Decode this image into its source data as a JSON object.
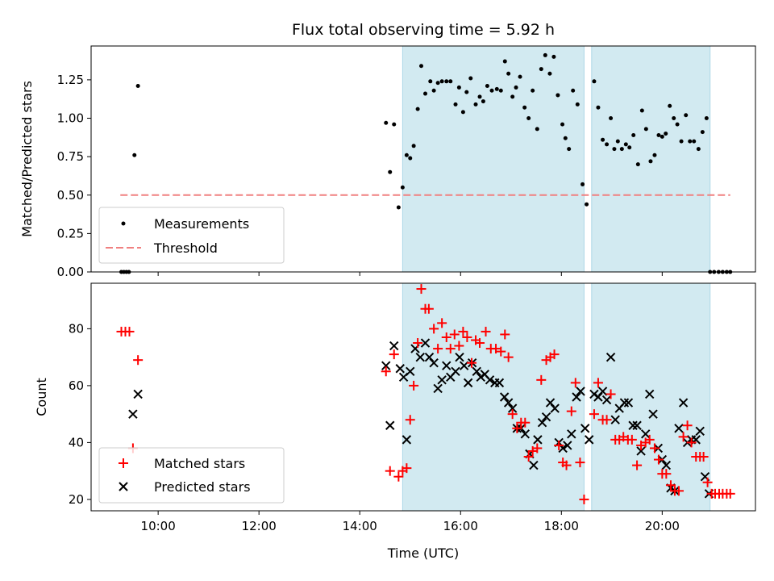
{
  "chart_data": [
    {
      "type": "scatter",
      "title": "Flux total observing time = 5.92 h",
      "xlabel": "",
      "ylabel": "Matched/Predicted stars",
      "xlim": [
        8.67,
        21.85
      ],
      "ylim": [
        0,
        1.47
      ],
      "xticks": [
        10,
        12,
        14,
        16,
        18,
        20
      ],
      "xtick_labels_shown": false,
      "yticks": [
        0,
        0.25,
        0.5,
        0.75,
        1.0,
        1.25
      ],
      "ytick_labels": [
        "0.00",
        "0.25",
        "0.50",
        "0.75",
        "1.00",
        "1.25"
      ],
      "shaded_intervals": [
        [
          14.85,
          18.45
        ],
        [
          18.6,
          20.95
        ]
      ],
      "shade_color": "#add8e6",
      "threshold": {
        "name": "Threshold",
        "value": 0.5,
        "x_range": [
          9.25,
          21.35
        ],
        "color": "#f08080"
      },
      "legend": [
        "Measurements",
        "Threshold"
      ],
      "legend_position": "lower-left",
      "series": [
        {
          "name": "Measurements",
          "marker": "dot",
          "color": "#000000",
          "points": [
            [
              9.27,
              0
            ],
            [
              9.32,
              0
            ],
            [
              9.37,
              0
            ],
            [
              9.42,
              0
            ],
            [
              9.53,
              0.76
            ],
            [
              9.6,
              1.21
            ],
            [
              14.52,
              0.97
            ],
            [
              14.6,
              0.65
            ],
            [
              14.68,
              0.96
            ],
            [
              14.77,
              0.42
            ],
            [
              14.85,
              0.55
            ],
            [
              14.93,
              0.76
            ],
            [
              15.0,
              0.74
            ],
            [
              15.07,
              0.82
            ],
            [
              15.15,
              1.06
            ],
            [
              15.22,
              1.34
            ],
            [
              15.3,
              1.16
            ],
            [
              15.4,
              1.24
            ],
            [
              15.47,
              1.18
            ],
            [
              15.55,
              1.23
            ],
            [
              15.63,
              1.24
            ],
            [
              15.72,
              1.24
            ],
            [
              15.8,
              1.24
            ],
            [
              15.9,
              1.09
            ],
            [
              15.97,
              1.2
            ],
            [
              16.05,
              1.04
            ],
            [
              16.12,
              1.17
            ],
            [
              16.2,
              1.26
            ],
            [
              16.3,
              1.09
            ],
            [
              16.38,
              1.14
            ],
            [
              16.45,
              1.11
            ],
            [
              16.53,
              1.21
            ],
            [
              16.62,
              1.18
            ],
            [
              16.72,
              1.19
            ],
            [
              16.8,
              1.18
            ],
            [
              16.88,
              1.37
            ],
            [
              16.95,
              1.29
            ],
            [
              17.03,
              1.14
            ],
            [
              17.1,
              1.2
            ],
            [
              17.18,
              1.27
            ],
            [
              17.27,
              1.07
            ],
            [
              17.35,
              1.0
            ],
            [
              17.43,
              1.18
            ],
            [
              17.52,
              0.93
            ],
            [
              17.6,
              1.32
            ],
            [
              17.68,
              1.41
            ],
            [
              17.77,
              1.29
            ],
            [
              17.85,
              1.4
            ],
            [
              17.93,
              1.15
            ],
            [
              18.02,
              0.96
            ],
            [
              18.08,
              0.87
            ],
            [
              18.15,
              0.8
            ],
            [
              18.23,
              1.18
            ],
            [
              18.32,
              1.09
            ],
            [
              18.42,
              0.57
            ],
            [
              18.5,
              0.44
            ],
            [
              18.65,
              1.24
            ],
            [
              18.73,
              1.07
            ],
            [
              18.82,
              0.86
            ],
            [
              18.9,
              0.83
            ],
            [
              18.98,
              1.0
            ],
            [
              19.05,
              0.8
            ],
            [
              19.12,
              0.85
            ],
            [
              19.2,
              0.8
            ],
            [
              19.28,
              0.83
            ],
            [
              19.35,
              0.81
            ],
            [
              19.43,
              0.89
            ],
            [
              19.52,
              0.7
            ],
            [
              19.6,
              1.05
            ],
            [
              19.68,
              0.93
            ],
            [
              19.77,
              0.72
            ],
            [
              19.85,
              0.76
            ],
            [
              19.93,
              0.89
            ],
            [
              20.0,
              0.88
            ],
            [
              20.07,
              0.9
            ],
            [
              20.15,
              1.08
            ],
            [
              20.23,
              1.0
            ],
            [
              20.3,
              0.96
            ],
            [
              20.38,
              0.85
            ],
            [
              20.47,
              1.02
            ],
            [
              20.55,
              0.85
            ],
            [
              20.63,
              0.85
            ],
            [
              20.72,
              0.8
            ],
            [
              20.8,
              0.91
            ],
            [
              20.88,
              1.0
            ],
            [
              20.95,
              0
            ],
            [
              21.03,
              0
            ],
            [
              21.12,
              0
            ],
            [
              21.2,
              0
            ],
            [
              21.28,
              0
            ],
            [
              21.35,
              0
            ]
          ]
        }
      ]
    },
    {
      "type": "scatter",
      "title": "",
      "xlabel": "Time (UTC)",
      "ylabel": "Count",
      "xlim": [
        8.67,
        21.85
      ],
      "ylim": [
        16,
        96
      ],
      "xticks": [
        10,
        12,
        14,
        16,
        18,
        20
      ],
      "xtick_labels": [
        "10:00",
        "12:00",
        "14:00",
        "16:00",
        "18:00",
        "20:00"
      ],
      "yticks": [
        20,
        40,
        60,
        80
      ],
      "ytick_labels": [
        "20",
        "40",
        "60",
        "80"
      ],
      "shaded_intervals": [
        [
          14.85,
          18.45
        ],
        [
          18.6,
          20.95
        ]
      ],
      "shade_color": "#add8e6",
      "legend": [
        "Matched stars",
        "Predicted stars"
      ],
      "legend_position": "lower-left",
      "series": [
        {
          "name": "Matched stars",
          "marker": "plus",
          "color": "#ff0000",
          "points": [
            [
              9.27,
              79
            ],
            [
              9.35,
              79
            ],
            [
              9.43,
              79
            ],
            [
              9.5,
              38
            ],
            [
              9.6,
              69
            ],
            [
              14.52,
              65
            ],
            [
              14.6,
              30
            ],
            [
              14.68,
              71
            ],
            [
              14.77,
              28
            ],
            [
              14.85,
              30
            ],
            [
              14.93,
              31
            ],
            [
              15.0,
              48
            ],
            [
              15.07,
              60
            ],
            [
              15.15,
              75
            ],
            [
              15.22,
              94
            ],
            [
              15.3,
              87
            ],
            [
              15.37,
              87
            ],
            [
              15.47,
              80
            ],
            [
              15.55,
              73
            ],
            [
              15.63,
              82
            ],
            [
              15.72,
              77
            ],
            [
              15.8,
              73
            ],
            [
              15.88,
              78
            ],
            [
              15.97,
              74
            ],
            [
              16.05,
              79
            ],
            [
              16.13,
              77
            ],
            [
              16.22,
              68
            ],
            [
              16.3,
              76
            ],
            [
              16.38,
              75
            ],
            [
              16.5,
              79
            ],
            [
              16.6,
              73
            ],
            [
              16.7,
              73
            ],
            [
              16.8,
              72
            ],
            [
              16.88,
              78
            ],
            [
              16.95,
              70
            ],
            [
              17.03,
              50
            ],
            [
              17.12,
              45
            ],
            [
              17.2,
              47
            ],
            [
              17.28,
              47
            ],
            [
              17.35,
              35
            ],
            [
              17.43,
              37
            ],
            [
              17.52,
              38
            ],
            [
              17.6,
              62
            ],
            [
              17.7,
              69
            ],
            [
              17.78,
              70
            ],
            [
              17.86,
              71
            ],
            [
              17.95,
              39
            ],
            [
              18.03,
              33
            ],
            [
              18.1,
              32
            ],
            [
              18.2,
              51
            ],
            [
              18.28,
              61
            ],
            [
              18.37,
              33
            ],
            [
              18.45,
              20
            ],
            [
              18.65,
              50
            ],
            [
              18.73,
              61
            ],
            [
              18.82,
              48
            ],
            [
              18.9,
              48
            ],
            [
              18.98,
              57
            ],
            [
              19.07,
              41
            ],
            [
              19.15,
              41
            ],
            [
              19.23,
              42
            ],
            [
              19.32,
              41
            ],
            [
              19.4,
              41
            ],
            [
              19.5,
              32
            ],
            [
              19.58,
              39
            ],
            [
              19.67,
              40
            ],
            [
              19.75,
              41
            ],
            [
              19.85,
              38
            ],
            [
              19.93,
              34
            ],
            [
              20.0,
              29
            ],
            [
              20.08,
              29
            ],
            [
              20.17,
              25
            ],
            [
              20.25,
              23
            ],
            [
              20.33,
              23
            ],
            [
              20.42,
              42
            ],
            [
              20.5,
              46
            ],
            [
              20.58,
              40
            ],
            [
              20.67,
              35
            ],
            [
              20.75,
              35
            ],
            [
              20.82,
              35
            ],
            [
              20.9,
              26
            ],
            [
              20.98,
              22
            ],
            [
              21.05,
              22
            ],
            [
              21.13,
              22
            ],
            [
              21.2,
              22
            ],
            [
              21.28,
              22
            ],
            [
              21.35,
              22
            ]
          ]
        },
        {
          "name": "Predicted stars",
          "marker": "x",
          "color": "#000000",
          "points": [
            [
              9.5,
              50
            ],
            [
              9.6,
              57
            ],
            [
              14.52,
              67
            ],
            [
              14.6,
              46
            ],
            [
              14.68,
              74
            ],
            [
              14.8,
              66
            ],
            [
              14.87,
              63
            ],
            [
              14.93,
              41
            ],
            [
              15.0,
              65
            ],
            [
              15.1,
              73
            ],
            [
              15.2,
              70
            ],
            [
              15.3,
              75
            ],
            [
              15.38,
              70
            ],
            [
              15.47,
              68
            ],
            [
              15.55,
              59
            ],
            [
              15.63,
              62
            ],
            [
              15.72,
              67
            ],
            [
              15.8,
              63
            ],
            [
              15.9,
              65
            ],
            [
              15.98,
              70
            ],
            [
              16.07,
              67
            ],
            [
              16.15,
              61
            ],
            [
              16.23,
              68
            ],
            [
              16.32,
              65
            ],
            [
              16.4,
              63
            ],
            [
              16.48,
              64
            ],
            [
              16.58,
              62
            ],
            [
              16.68,
              61
            ],
            [
              16.77,
              61
            ],
            [
              16.87,
              56
            ],
            [
              16.95,
              54
            ],
            [
              17.03,
              52
            ],
            [
              17.12,
              45
            ],
            [
              17.2,
              45
            ],
            [
              17.28,
              43
            ],
            [
              17.37,
              36
            ],
            [
              17.45,
              32
            ],
            [
              17.53,
              41
            ],
            [
              17.62,
              47
            ],
            [
              17.7,
              49
            ],
            [
              17.78,
              54
            ],
            [
              17.87,
              52
            ],
            [
              17.95,
              40
            ],
            [
              18.03,
              38
            ],
            [
              18.12,
              39
            ],
            [
              18.2,
              43
            ],
            [
              18.3,
              56
            ],
            [
              18.38,
              58
            ],
            [
              18.47,
              45
            ],
            [
              18.55,
              41
            ],
            [
              18.65,
              57
            ],
            [
              18.73,
              56
            ],
            [
              18.82,
              58
            ],
            [
              18.9,
              55
            ],
            [
              18.98,
              70
            ],
            [
              19.07,
              48
            ],
            [
              19.15,
              52
            ],
            [
              19.25,
              54
            ],
            [
              19.33,
              54
            ],
            [
              19.42,
              46
            ],
            [
              19.5,
              46
            ],
            [
              19.58,
              37
            ],
            [
              19.67,
              43
            ],
            [
              19.75,
              57
            ],
            [
              19.82,
              50
            ],
            [
              19.92,
              38
            ],
            [
              20.0,
              34
            ],
            [
              20.08,
              32
            ],
            [
              20.17,
              24
            ],
            [
              20.25,
              23
            ],
            [
              20.33,
              45
            ],
            [
              20.42,
              54
            ],
            [
              20.5,
              40
            ],
            [
              20.58,
              41
            ],
            [
              20.67,
              41
            ],
            [
              20.75,
              44
            ],
            [
              20.85,
              28
            ],
            [
              20.93,
              22
            ]
          ]
        }
      ]
    }
  ]
}
